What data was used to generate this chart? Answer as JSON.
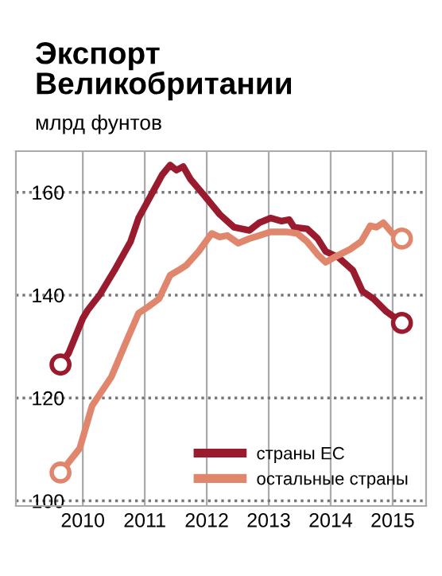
{
  "chart_data": {
    "type": "line",
    "title": "Экспорт\nВеликобритании",
    "subtitle": "млрд фунтов",
    "xlim": [
      2008.92,
      2015.54
    ],
    "xticks": [
      2010,
      2011,
      2012,
      2013,
      2014,
      2015
    ],
    "ylim": [
      99,
      168
    ],
    "yticks": [
      100,
      120,
      140,
      160
    ],
    "grid": true,
    "legend": "bottom right",
    "line_style": "solid",
    "series": [
      {
        "name": "страны ЕС",
        "color": "#9b1b2e",
        "x": [
          2009.64,
          2009.77,
          2010.0,
          2010.08,
          2010.28,
          2010.51,
          2010.77,
          2010.9,
          2011.1,
          2011.28,
          2011.41,
          2011.51,
          2011.62,
          2011.74,
          2012.0,
          2012.21,
          2012.44,
          2012.69,
          2012.85,
          2013.03,
          2013.21,
          2013.33,
          2013.41,
          2013.62,
          2013.79,
          2013.92,
          2014.13,
          2014.36,
          2014.51,
          2014.69,
          2014.9,
          2015.15
        ],
        "values": [
          126.5,
          128.7,
          135.5,
          137.1,
          140.2,
          144.8,
          150.4,
          155.0,
          159.4,
          163.4,
          165.3,
          164.3,
          165.0,
          162.5,
          158.8,
          155.7,
          153.2,
          152.6,
          154.1,
          155.0,
          154.4,
          154.7,
          153.2,
          152.9,
          151.0,
          148.5,
          147.3,
          144.8,
          140.8,
          139.3,
          136.8,
          134.6
        ]
      },
      {
        "name": "остальные страны",
        "color": "#e0866d",
        "x": [
          2009.64,
          2009.95,
          2010.15,
          2010.46,
          2010.72,
          2010.9,
          2011.05,
          2011.23,
          2011.41,
          2011.54,
          2011.67,
          2011.87,
          2012.08,
          2012.21,
          2012.33,
          2012.51,
          2012.69,
          2012.85,
          2013.03,
          2013.28,
          2013.46,
          2013.62,
          2013.79,
          2013.92,
          2014.05,
          2014.31,
          2014.49,
          2014.64,
          2014.74,
          2014.85,
          2015.0,
          2015.15
        ],
        "values": [
          105.5,
          110.2,
          118.5,
          124.1,
          131.5,
          136.5,
          137.7,
          139.3,
          143.9,
          144.8,
          145.8,
          148.5,
          152.0,
          151.3,
          151.6,
          150.1,
          151.0,
          151.6,
          152.3,
          152.3,
          152.0,
          150.4,
          147.9,
          146.4,
          147.3,
          148.9,
          150.4,
          153.5,
          153.2,
          154.1,
          152.0,
          151.0
        ]
      }
    ]
  }
}
